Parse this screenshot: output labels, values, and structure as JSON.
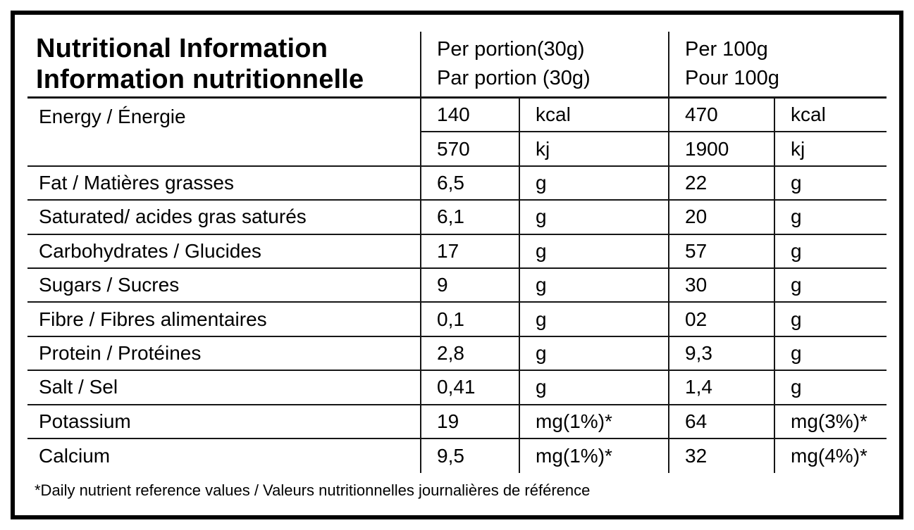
{
  "header": {
    "title_en": "Nutritional Information",
    "title_fr": "Information nutritionnelle",
    "per_portion_en": "Per portion(30g)",
    "per_portion_fr": "Par portion (30g)",
    "per_100g_en": "Per 100g",
    "per_100g_fr": "Pour 100g"
  },
  "rows": [
    {
      "label": "Energy / Énergie",
      "cells": [
        [
          "140",
          "kcal",
          "470",
          "kcal"
        ],
        [
          "570",
          "kj",
          "1900",
          "kj"
        ]
      ]
    },
    {
      "label": "Fat / Matières grasses",
      "cells": [
        [
          "6,5",
          "g",
          "22",
          "g"
        ]
      ]
    },
    {
      "label": "Saturated/ acides gras saturés",
      "cells": [
        [
          "6,1",
          "g",
          "20",
          "g"
        ]
      ]
    },
    {
      "label": "Carbohydrates / Glucides",
      "cells": [
        [
          "17",
          "g",
          "57",
          "g"
        ]
      ]
    },
    {
      "label": "Sugars / Sucres",
      "cells": [
        [
          "9",
          "g",
          "30",
          "g"
        ]
      ]
    },
    {
      "label": "Fibre / Fibres alimentaires",
      "cells": [
        [
          "0,1",
          "g",
          "02",
          "g"
        ]
      ]
    },
    {
      "label": "Protein / Protéines",
      "cells": [
        [
          "2,8",
          "g",
          "9,3",
          "g"
        ]
      ]
    },
    {
      "label": "Salt / Sel",
      "cells": [
        [
          "0,41",
          "g",
          "1,4",
          "g"
        ]
      ]
    },
    {
      "label": "Potassium",
      "cells": [
        [
          "19",
          "mg(1%)*",
          "64",
          "mg(3%)*"
        ]
      ]
    },
    {
      "label": "Calcium",
      "cells": [
        [
          "9,5",
          "mg(1%)*",
          "32",
          "mg(4%)*"
        ]
      ]
    }
  ],
  "footnote": "*Daily nutrient reference values / Valeurs nutritionnelles journalières de référence",
  "colors": {
    "background": "#ffffff",
    "text": "#000000",
    "line": "#161616",
    "border": "#000000"
  }
}
